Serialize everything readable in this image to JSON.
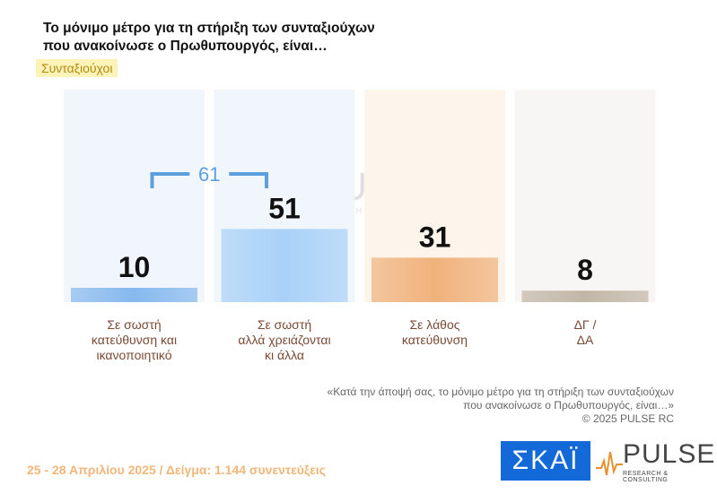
{
  "header": {
    "title_line1": "Το μόνιμο μέτρο  για τη στήριξη των συνταξιούχων",
    "title_line2": "που ανακοίνωσε ο Πρωθυπουργός, είναι…",
    "subtitle": "Συνταξιούχοι"
  },
  "chart_data": {
    "type": "bar",
    "categories": [
      [
        "Σε σωστή",
        "κατεύθυνση και",
        "ικανοποιητικό"
      ],
      [
        "Σε σωστή",
        "αλλά χρειάζονται",
        "κι άλλα"
      ],
      [
        "Σε λάθος",
        "κατεύθυνση"
      ],
      [
        "ΔΓ /",
        "ΔΑ"
      ]
    ],
    "values": [
      10,
      51,
      31,
      8
    ],
    "value_labels": [
      "10",
      "51",
      "31",
      "8"
    ],
    "colors": [
      "#86b9ee",
      "#a9d1f7",
      "#f0b27c",
      "#c2b6a6"
    ],
    "bg_colors": [
      "#f1f6fc",
      "#f1f6fc",
      "#fdf4ec",
      "#f8f6f4"
    ],
    "ylim": [
      0,
      100
    ],
    "bracket": {
      "label": "61",
      "from": 0,
      "to": 1,
      "color": "#5b9fe0"
    }
  },
  "footnote": {
    "line1": "«Κατά την άποψή σας, το μόνιμο μέτρο  για τη στήριξη των συνταξιούχων",
    "line2": "που ανακοίνωσε ο Πρωθυπουργός, είναι…»",
    "line3": "©  2025  PULSE RC"
  },
  "footer": {
    "date_sample": "25 - 28 Απριλίου 2025  /  Δείγμα:  1.144 συνεντεύξεις"
  },
  "logos": {
    "skai": "ΣΚΑΪ",
    "pulse": "PULSE",
    "pulse_sub": "RESEARCH & CONSULTING"
  }
}
